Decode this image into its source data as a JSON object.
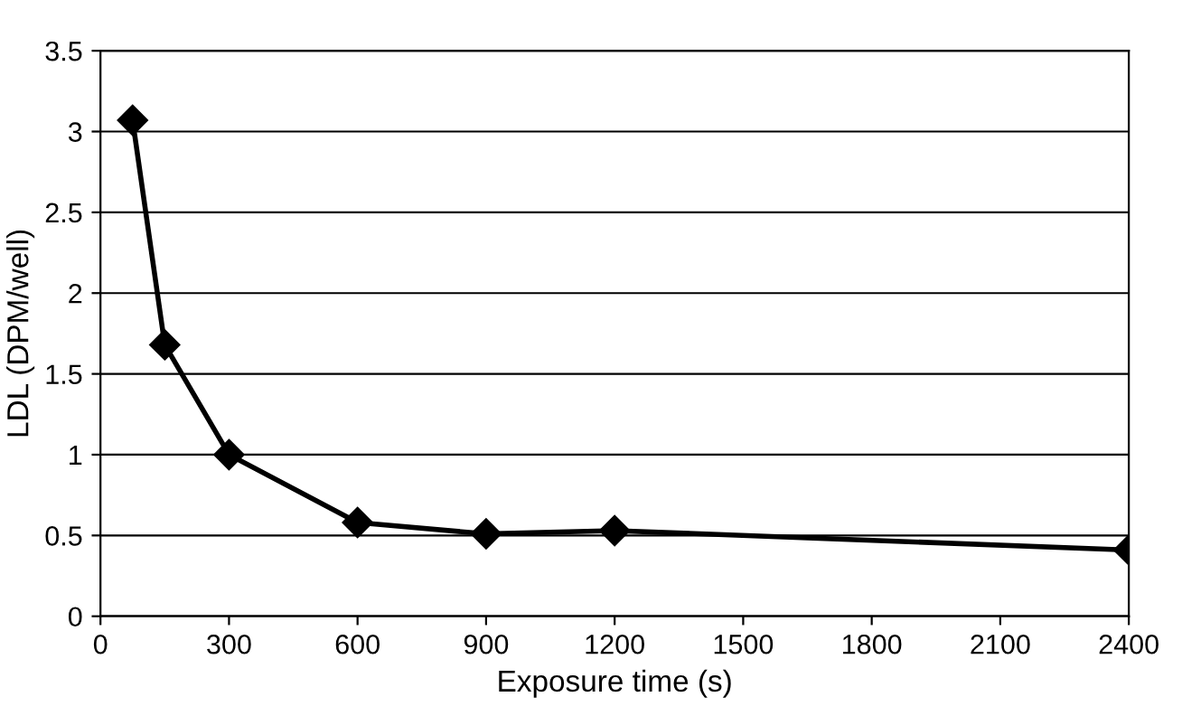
{
  "chart_data": {
    "type": "line",
    "xlabel": "Exposure time (s)",
    "ylabel": "LDL (DPM/well)",
    "series": [
      {
        "color": "#000000",
        "x": [
          75,
          150,
          300,
          600,
          900,
          1200,
          2400
        ],
        "values": [
          3.07,
          1.68,
          1.0,
          0.58,
          0.51,
          0.53,
          0.41
        ]
      }
    ],
    "xlim": [
      0,
      2400
    ],
    "xticks": [
      0,
      300,
      600,
      900,
      1200,
      1500,
      1800,
      2100,
      2400
    ],
    "ylim": [
      0,
      3.5
    ],
    "yticks": [
      0,
      0.5,
      1,
      1.5,
      2,
      2.5,
      3,
      3.5
    ],
    "grid": "y",
    "marker": "diamond",
    "line_style": "solid"
  }
}
